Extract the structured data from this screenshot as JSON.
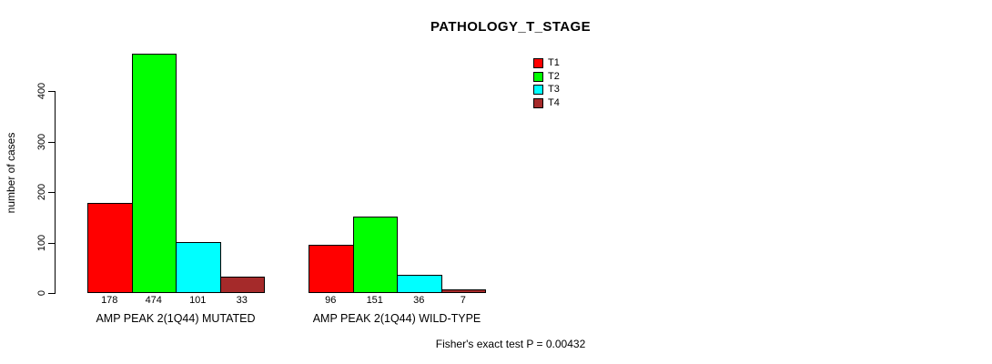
{
  "chart_data": {
    "type": "bar",
    "title": "PATHOLOGY_T_STAGE",
    "ylabel": "number of cases",
    "xlabel": "",
    "ylim": [
      0,
      400
    ],
    "yticks": [
      0,
      100,
      200,
      300,
      400
    ],
    "grid": false,
    "legend_position": "top-right",
    "categories": [
      "AMP PEAK 2(1Q44) MUTATED",
      "AMP PEAK 2(1Q44) WILD-TYPE"
    ],
    "series": [
      {
        "name": "T1",
        "color": "#FF0000",
        "values": [
          178,
          96
        ]
      },
      {
        "name": "T2",
        "color": "#00FF00",
        "values": [
          474,
          151
        ]
      },
      {
        "name": "T3",
        "color": "#00FFFF",
        "values": [
          101,
          36
        ]
      },
      {
        "name": "T4",
        "color": "#A52A2A",
        "values": [
          33,
          7
        ]
      }
    ],
    "bar_value_labels": [
      [
        178,
        474,
        101,
        33
      ],
      [
        96,
        151,
        36,
        7
      ]
    ],
    "annotation": "Fisher's exact test P = 0.00432",
    "colors": {
      "background": "#FFFFFF",
      "axis": "#000000",
      "text": "#000000"
    }
  }
}
